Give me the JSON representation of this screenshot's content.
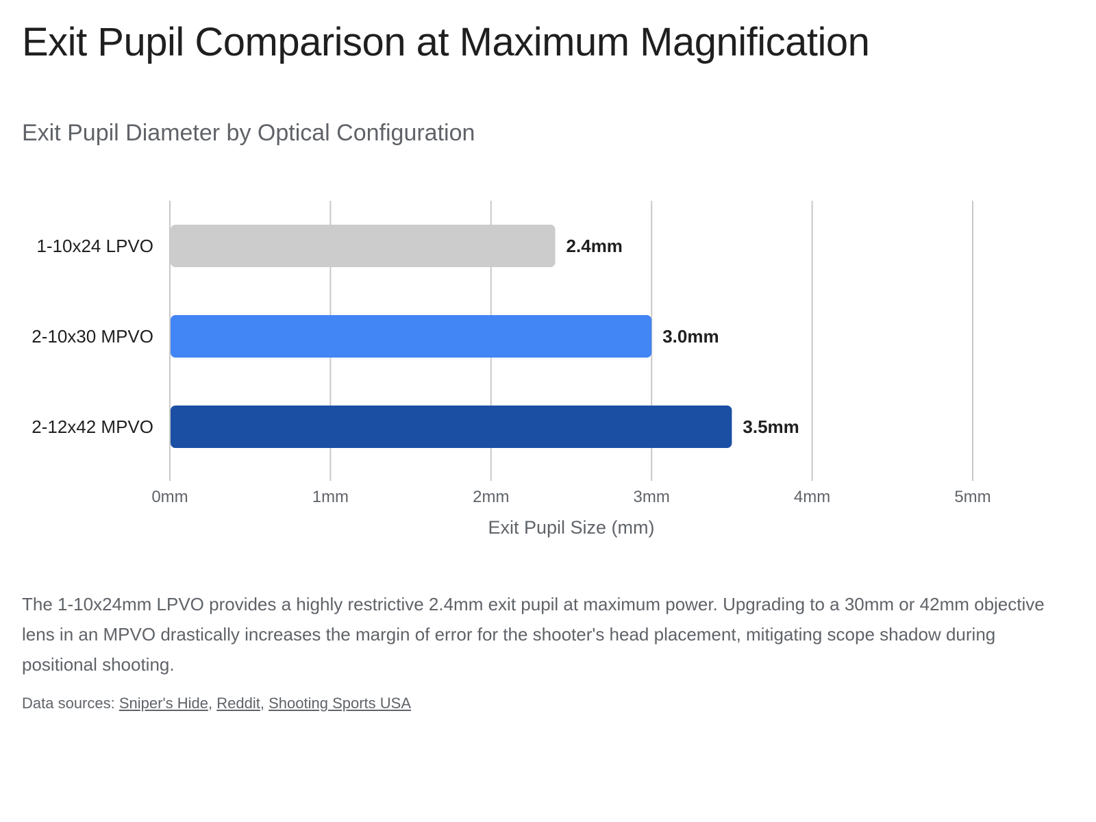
{
  "title": "Exit Pupil Comparison at Maximum Magnification",
  "description": "The 1-10x24mm LPVO provides a highly restrictive 2.4mm exit pupil at maximum power. Upgrading to a 30mm or 42mm objective lens in an MPVO drastically increases the margin of error for the shooter's head placement, mitigating scope shadow during positional shooting.",
  "sources": {
    "label": "Data sources:",
    "links": [
      "Sniper's Hide",
      "Reddit",
      "Shooting Sports USA"
    ],
    "separator": ","
  },
  "chart_data": {
    "type": "bar",
    "orientation": "horizontal",
    "title": "Exit Pupil Diameter by Optical Configuration",
    "xlabel": "Exit Pupil Size (mm)",
    "ylabel": "",
    "categories": [
      "1-10x24 LPVO",
      "2-10x30 MPVO",
      "2-12x42 MPVO"
    ],
    "values": [
      2.4,
      3.0,
      3.5
    ],
    "value_labels": [
      "2.4mm",
      "3.0mm",
      "3.5mm"
    ],
    "colors": [
      "#cccccc",
      "#4285f4",
      "#1a4fa3"
    ],
    "xlim": [
      0,
      5
    ],
    "xticks": [
      0,
      1,
      2,
      3,
      4,
      5
    ],
    "xtick_labels": [
      "0mm",
      "1mm",
      "2mm",
      "3mm",
      "4mm",
      "5mm"
    ],
    "grid": true,
    "legend": "none"
  }
}
